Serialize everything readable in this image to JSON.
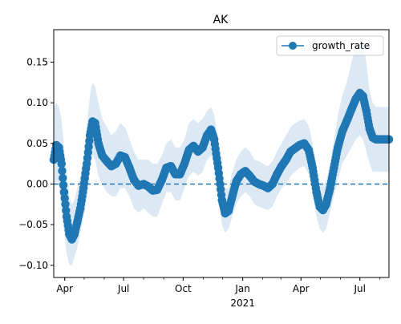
{
  "chart_data": {
    "type": "line",
    "title": "AK",
    "xlabel": "",
    "ylabel": "",
    "x_range": [
      "2020-03-15",
      "2021-08-15"
    ],
    "ylim": [
      -0.115,
      0.19
    ],
    "y_ticks": [
      -0.1,
      -0.05,
      0.0,
      0.05,
      0.1,
      0.15
    ],
    "y_tick_labels": [
      "−0.10",
      "−0.05",
      "0.00",
      "0.05",
      "0.10",
      "0.15"
    ],
    "x_ticks": [
      {
        "date": "2020-04-01",
        "label": "Apr"
      },
      {
        "date": "2020-07-01",
        "label": "Jul"
      },
      {
        "date": "2020-10-01",
        "label": "Oct"
      },
      {
        "date": "2021-01-01",
        "label": "Jan"
      },
      {
        "date": "2021-04-01",
        "label": "Apr"
      },
      {
        "date": "2021-07-01",
        "label": "Jul"
      }
    ],
    "x_year_label": {
      "date": "2021-01-01",
      "label": "2021"
    },
    "grid": false,
    "legend_position": "upper right",
    "reference_line": {
      "y": 0.0,
      "style": "dashed"
    },
    "series": [
      {
        "name": "growth_rate",
        "color": "#1f77b4",
        "marker": "circle",
        "band_color": "#dce9f5",
        "points": [
          {
            "date": "2020-03-15",
            "y": 0.03,
            "lo": -0.01,
            "hi": 0.095
          },
          {
            "date": "2020-03-19",
            "y": 0.048,
            "lo": 0.005,
            "hi": 0.1
          },
          {
            "date": "2020-03-23",
            "y": 0.045,
            "lo": 0.0,
            "hi": 0.095
          },
          {
            "date": "2020-03-27",
            "y": 0.025,
            "lo": -0.03,
            "hi": 0.08
          },
          {
            "date": "2020-03-31",
            "y": -0.01,
            "lo": -0.06,
            "hi": 0.045
          },
          {
            "date": "2020-04-04",
            "y": -0.04,
            "lo": -0.085,
            "hi": 0.01
          },
          {
            "date": "2020-04-08",
            "y": -0.062,
            "lo": -0.1,
            "hi": -0.015
          },
          {
            "date": "2020-04-12",
            "y": -0.068,
            "lo": -0.1,
            "hi": -0.025
          },
          {
            "date": "2020-04-16",
            "y": -0.062,
            "lo": -0.09,
            "hi": -0.02
          },
          {
            "date": "2020-04-20",
            "y": -0.048,
            "lo": -0.08,
            "hi": -0.005
          },
          {
            "date": "2020-04-25",
            "y": -0.03,
            "lo": -0.06,
            "hi": 0.01
          },
          {
            "date": "2020-04-30",
            "y": -0.005,
            "lo": -0.04,
            "hi": 0.03
          },
          {
            "date": "2020-05-05",
            "y": 0.025,
            "lo": -0.02,
            "hi": 0.07
          },
          {
            "date": "2020-05-10",
            "y": 0.06,
            "lo": 0.02,
            "hi": 0.11
          },
          {
            "date": "2020-05-14",
            "y": 0.077,
            "lo": 0.035,
            "hi": 0.125
          },
          {
            "date": "2020-05-18",
            "y": 0.075,
            "lo": 0.03,
            "hi": 0.12
          },
          {
            "date": "2020-05-23",
            "y": 0.05,
            "lo": 0.01,
            "hi": 0.1
          },
          {
            "date": "2020-05-29",
            "y": 0.035,
            "lo": 0.0,
            "hi": 0.08
          },
          {
            "date": "2020-06-05",
            "y": 0.028,
            "lo": -0.01,
            "hi": 0.07
          },
          {
            "date": "2020-06-12",
            "y": 0.022,
            "lo": -0.015,
            "hi": 0.06
          },
          {
            "date": "2020-06-19",
            "y": 0.025,
            "lo": -0.015,
            "hi": 0.065
          },
          {
            "date": "2020-06-26",
            "y": 0.035,
            "lo": -0.005,
            "hi": 0.075
          },
          {
            "date": "2020-07-03",
            "y": 0.033,
            "lo": -0.005,
            "hi": 0.07
          },
          {
            "date": "2020-07-10",
            "y": 0.02,
            "lo": -0.015,
            "hi": 0.055
          },
          {
            "date": "2020-07-17",
            "y": 0.005,
            "lo": -0.03,
            "hi": 0.04
          },
          {
            "date": "2020-07-24",
            "y": -0.002,
            "lo": -0.035,
            "hi": 0.03
          },
          {
            "date": "2020-08-01",
            "y": 0.0,
            "lo": -0.03,
            "hi": 0.03
          },
          {
            "date": "2020-08-08",
            "y": -0.003,
            "lo": -0.035,
            "hi": 0.03
          },
          {
            "date": "2020-08-15",
            "y": -0.008,
            "lo": -0.04,
            "hi": 0.025
          },
          {
            "date": "2020-08-22",
            "y": -0.007,
            "lo": -0.04,
            "hi": 0.025
          },
          {
            "date": "2020-08-29",
            "y": 0.005,
            "lo": -0.025,
            "hi": 0.035
          },
          {
            "date": "2020-09-05",
            "y": 0.02,
            "lo": -0.01,
            "hi": 0.05
          },
          {
            "date": "2020-09-12",
            "y": 0.022,
            "lo": -0.01,
            "hi": 0.055
          },
          {
            "date": "2020-09-19",
            "y": 0.012,
            "lo": -0.02,
            "hi": 0.045
          },
          {
            "date": "2020-09-26",
            "y": 0.012,
            "lo": -0.02,
            "hi": 0.045
          },
          {
            "date": "2020-10-03",
            "y": 0.025,
            "lo": -0.005,
            "hi": 0.055
          },
          {
            "date": "2020-10-10",
            "y": 0.042,
            "lo": 0.01,
            "hi": 0.075
          },
          {
            "date": "2020-10-17",
            "y": 0.047,
            "lo": 0.015,
            "hi": 0.08
          },
          {
            "date": "2020-10-24",
            "y": 0.04,
            "lo": 0.01,
            "hi": 0.075
          },
          {
            "date": "2020-10-31",
            "y": 0.045,
            "lo": 0.015,
            "hi": 0.08
          },
          {
            "date": "2020-11-07",
            "y": 0.06,
            "lo": 0.03,
            "hi": 0.09
          },
          {
            "date": "2020-11-13",
            "y": 0.067,
            "lo": 0.035,
            "hi": 0.095
          },
          {
            "date": "2020-11-18",
            "y": 0.055,
            "lo": 0.025,
            "hi": 0.085
          },
          {
            "date": "2020-11-24",
            "y": 0.02,
            "lo": -0.015,
            "hi": 0.055
          },
          {
            "date": "2020-11-30",
            "y": -0.02,
            "lo": -0.05,
            "hi": 0.01
          },
          {
            "date": "2020-12-05",
            "y": -0.036,
            "lo": -0.06,
            "hi": -0.005
          },
          {
            "date": "2020-12-10",
            "y": -0.033,
            "lo": -0.055,
            "hi": -0.005
          },
          {
            "date": "2020-12-16",
            "y": -0.015,
            "lo": -0.04,
            "hi": 0.015
          },
          {
            "date": "2020-12-22",
            "y": 0.003,
            "lo": -0.025,
            "hi": 0.03
          },
          {
            "date": "2020-12-29",
            "y": 0.012,
            "lo": -0.015,
            "hi": 0.04
          },
          {
            "date": "2021-01-05",
            "y": 0.016,
            "lo": -0.01,
            "hi": 0.045
          },
          {
            "date": "2021-01-12",
            "y": 0.01,
            "lo": -0.015,
            "hi": 0.04
          },
          {
            "date": "2021-01-19",
            "y": 0.003,
            "lo": -0.025,
            "hi": 0.03
          },
          {
            "date": "2021-01-26",
            "y": 0.0,
            "lo": -0.028,
            "hi": 0.028
          },
          {
            "date": "2021-02-02",
            "y": -0.002,
            "lo": -0.03,
            "hi": 0.025
          },
          {
            "date": "2021-02-09",
            "y": -0.005,
            "lo": -0.032,
            "hi": 0.022
          },
          {
            "date": "2021-02-16",
            "y": 0.0,
            "lo": -0.028,
            "hi": 0.028
          },
          {
            "date": "2021-02-23",
            "y": 0.012,
            "lo": -0.015,
            "hi": 0.04
          },
          {
            "date": "2021-03-02",
            "y": 0.022,
            "lo": -0.005,
            "hi": 0.05
          },
          {
            "date": "2021-03-09",
            "y": 0.03,
            "lo": 0.0,
            "hi": 0.06
          },
          {
            "date": "2021-03-16",
            "y": 0.04,
            "lo": 0.01,
            "hi": 0.07
          },
          {
            "date": "2021-03-23",
            "y": 0.044,
            "lo": 0.015,
            "hi": 0.075
          },
          {
            "date": "2021-03-30",
            "y": 0.048,
            "lo": 0.02,
            "hi": 0.078
          },
          {
            "date": "2021-04-06",
            "y": 0.05,
            "lo": 0.022,
            "hi": 0.08
          },
          {
            "date": "2021-04-13",
            "y": 0.042,
            "lo": 0.012,
            "hi": 0.072
          },
          {
            "date": "2021-04-19",
            "y": 0.02,
            "lo": -0.01,
            "hi": 0.05
          },
          {
            "date": "2021-04-25",
            "y": -0.01,
            "lo": -0.04,
            "hi": 0.02
          },
          {
            "date": "2021-04-30",
            "y": -0.028,
            "lo": -0.055,
            "hi": 0.0
          },
          {
            "date": "2021-05-05",
            "y": -0.032,
            "lo": -0.06,
            "hi": -0.002
          },
          {
            "date": "2021-05-10",
            "y": -0.025,
            "lo": -0.055,
            "hi": 0.005
          },
          {
            "date": "2021-05-16",
            "y": -0.005,
            "lo": -0.035,
            "hi": 0.025
          },
          {
            "date": "2021-05-22",
            "y": 0.02,
            "lo": -0.015,
            "hi": 0.055
          },
          {
            "date": "2021-05-28",
            "y": 0.045,
            "lo": 0.005,
            "hi": 0.085
          },
          {
            "date": "2021-06-04",
            "y": 0.065,
            "lo": 0.025,
            "hi": 0.11
          },
          {
            "date": "2021-06-11",
            "y": 0.078,
            "lo": 0.035,
            "hi": 0.125
          },
          {
            "date": "2021-06-18",
            "y": 0.092,
            "lo": 0.045,
            "hi": 0.15
          },
          {
            "date": "2021-06-25",
            "y": 0.105,
            "lo": 0.055,
            "hi": 0.17
          },
          {
            "date": "2021-07-01",
            "y": 0.112,
            "lo": 0.06,
            "hi": 0.18
          },
          {
            "date": "2021-07-06",
            "y": 0.108,
            "lo": 0.055,
            "hi": 0.175
          },
          {
            "date": "2021-07-11",
            "y": 0.09,
            "lo": 0.04,
            "hi": 0.15
          },
          {
            "date": "2021-07-16",
            "y": 0.068,
            "lo": 0.025,
            "hi": 0.115
          },
          {
            "date": "2021-07-21",
            "y": 0.057,
            "lo": 0.015,
            "hi": 0.1
          },
          {
            "date": "2021-07-26",
            "y": 0.055,
            "lo": 0.015,
            "hi": 0.095
          },
          {
            "date": "2021-08-02",
            "y": 0.055,
            "lo": 0.015,
            "hi": 0.095
          },
          {
            "date": "2021-08-15",
            "y": 0.055,
            "lo": 0.015,
            "hi": 0.095
          }
        ]
      }
    ]
  }
}
